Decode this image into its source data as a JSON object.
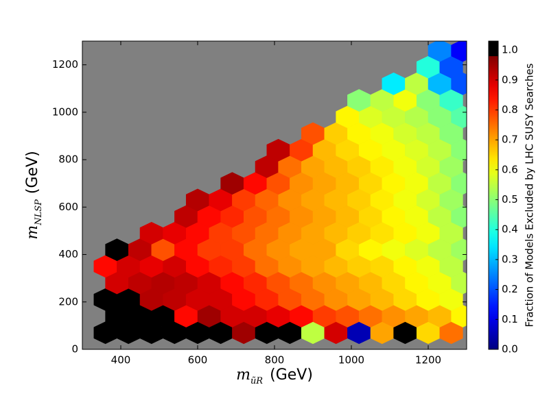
{
  "chart_data": {
    "type": "hexbin",
    "xlabel": [
      "m",
      "ũR",
      "(GeV)"
    ],
    "ylabel": [
      "m",
      "NLSP",
      "(GeV)"
    ],
    "xlim": [
      300,
      1300
    ],
    "ylim": [
      0,
      1300
    ],
    "xticks": [
      400,
      600,
      800,
      1000,
      1200
    ],
    "yticks": [
      0,
      200,
      400,
      600,
      800,
      1000,
      1200
    ],
    "background": "#808080",
    "rows": [
      {
        "y": 70,
        "x": [
          360,
          420,
          480,
          540,
          600,
          660,
          720,
          780,
          840,
          900,
          960,
          1020,
          1080,
          1140,
          1200,
          1260
        ],
        "values": [
          1,
          1,
          1,
          1,
          1,
          1,
          0.95,
          1,
          1,
          0.55,
          0.9,
          0.05,
          0.7,
          1,
          0.65,
          0.75
        ]
      },
      {
        "y": 140,
        "x": [
          390,
          450,
          510,
          570,
          630,
          690,
          750,
          810,
          870,
          930,
          990,
          1050,
          1110,
          1170,
          1230,
          1290
        ],
        "values": [
          1,
          1,
          1,
          0.85,
          0.95,
          0.9,
          0.9,
          0.88,
          0.85,
          0.8,
          0.78,
          0.75,
          0.72,
          0.7,
          0.68,
          0.62
        ]
      },
      {
        "y": 210,
        "x": [
          360,
          420,
          480,
          540,
          600,
          660,
          720,
          780,
          840,
          900,
          960,
          1020,
          1080,
          1140,
          1200,
          1260
        ],
        "values": [
          1,
          1,
          0.93,
          0.92,
          0.9,
          0.9,
          0.85,
          0.82,
          0.78,
          0.75,
          0.72,
          0.7,
          0.68,
          0.65,
          0.62,
          0.6
        ]
      },
      {
        "y": 280,
        "x": [
          390,
          450,
          510,
          570,
          630,
          690,
          750,
          810,
          870,
          930,
          990,
          1050,
          1110,
          1170,
          1230,
          1290
        ],
        "values": [
          0.9,
          0.92,
          0.93,
          0.92,
          0.9,
          0.85,
          0.82,
          0.78,
          0.75,
          0.72,
          0.7,
          0.68,
          0.65,
          0.62,
          0.6,
          0.55
        ]
      },
      {
        "y": 350,
        "x": [
          360,
          420,
          480,
          540,
          600,
          660,
          720,
          780,
          840,
          900,
          960,
          1020,
          1080,
          1140,
          1200,
          1260
        ],
        "values": [
          0.85,
          0.9,
          0.88,
          0.9,
          0.85,
          0.82,
          0.8,
          0.75,
          0.72,
          0.7,
          0.68,
          0.66,
          0.65,
          0.62,
          0.6,
          0.55
        ]
      },
      {
        "y": 420,
        "x": [
          390,
          450,
          510,
          570,
          630,
          690,
          750,
          810,
          870,
          930,
          990,
          1050,
          1110,
          1170,
          1230,
          1290
        ],
        "values": [
          1,
          0.92,
          0.78,
          0.85,
          0.8,
          0.8,
          0.75,
          0.72,
          0.7,
          0.7,
          0.65,
          0.62,
          0.6,
          0.58,
          0.55,
          0.52
        ]
      },
      {
        "y": 490,
        "x": [
          480,
          540,
          600,
          660,
          720,
          780,
          840,
          900,
          960,
          1020,
          1080,
          1140,
          1200,
          1260
        ],
        "values": [
          0.9,
          0.88,
          0.85,
          0.8,
          0.78,
          0.75,
          0.72,
          0.7,
          0.68,
          0.66,
          0.64,
          0.62,
          0.6,
          0.55
        ]
      },
      {
        "y": 560,
        "x": [
          570,
          630,
          690,
          750,
          810,
          870,
          930,
          990,
          1050,
          1110,
          1170,
          1230,
          1290
        ],
        "values": [
          0.92,
          0.85,
          0.82,
          0.78,
          0.75,
          0.72,
          0.7,
          0.68,
          0.65,
          0.62,
          0.6,
          0.55,
          0.5
        ]
      },
      {
        "y": 630,
        "x": [
          600,
          660,
          720,
          780,
          840,
          900,
          960,
          1020,
          1080,
          1140,
          1200,
          1260
        ],
        "values": [
          0.93,
          0.88,
          0.8,
          0.76,
          0.72,
          0.7,
          0.68,
          0.66,
          0.63,
          0.6,
          0.57,
          0.52
        ]
      },
      {
        "y": 700,
        "x": [
          690,
          750,
          810,
          870,
          930,
          990,
          1050,
          1110,
          1170,
          1230,
          1290
        ],
        "values": [
          0.95,
          0.85,
          0.78,
          0.72,
          0.7,
          0.68,
          0.65,
          0.62,
          0.6,
          0.55,
          0.5
        ]
      },
      {
        "y": 770,
        "x": [
          780,
          840,
          900,
          960,
          1020,
          1080,
          1140,
          1200,
          1260
        ],
        "values": [
          0.92,
          0.75,
          0.7,
          0.68,
          0.66,
          0.63,
          0.6,
          0.57,
          0.52
        ]
      },
      {
        "y": 840,
        "x": [
          810,
          870,
          930,
          990,
          1050,
          1110,
          1170,
          1230,
          1290
        ],
        "values": [
          0.92,
          0.8,
          0.68,
          0.65,
          0.62,
          0.6,
          0.58,
          0.55,
          0.5
        ]
      },
      {
        "y": 910,
        "x": [
          900,
          960,
          1020,
          1080,
          1140,
          1200,
          1260
        ],
        "values": [
          0.78,
          0.66,
          0.62,
          0.6,
          0.57,
          0.55,
          0.5
        ]
      },
      {
        "y": 980,
        "x": [
          990,
          1050,
          1110,
          1170,
          1230,
          1290
        ],
        "values": [
          0.62,
          0.58,
          0.56,
          0.54,
          0.5,
          0.45
        ]
      },
      {
        "y": 1050,
        "x": [
          1020,
          1080,
          1140,
          1200,
          1260
        ],
        "values": [
          0.5,
          0.55,
          0.6,
          0.5,
          0.42
        ]
      },
      {
        "y": 1120,
        "x": [
          1110,
          1170,
          1230,
          1290
        ],
        "values": [
          0.35,
          0.55,
          0.3,
          0.2
        ]
      },
      {
        "y": 1190,
        "x": [
          1200,
          1260
        ],
        "values": [
          0.4,
          0.2
        ]
      },
      {
        "y": 1260,
        "x": [
          1230,
          1290
        ],
        "values": [
          0.25,
          0.12
        ]
      }
    ],
    "colorbar": {
      "label": "Fraction of Models Excluded by LHC SUSY Searches",
      "colormap": "jet",
      "ylim": [
        0,
        1.03
      ],
      "yticks": [
        {
          "value": 0,
          "label": "0.0"
        },
        {
          "value": 0.1,
          "label": "0.1"
        },
        {
          "value": 0.2,
          "label": "0.2"
        },
        {
          "value": 0.3,
          "label": "0.3"
        },
        {
          "value": 0.4,
          "label": "0.4"
        },
        {
          "value": 0.5,
          "label": "0.5"
        },
        {
          "value": 0.6,
          "label": "0.6"
        },
        {
          "value": 0.7,
          "label": "0.7"
        },
        {
          "value": 0.8,
          "label": "0.8"
        },
        {
          "value": 0.9,
          "label": "0.9"
        },
        {
          "value": 1,
          "label": "1.0"
        }
      ],
      "over": {
        "from": 0.98,
        "color": "#000000"
      }
    }
  }
}
